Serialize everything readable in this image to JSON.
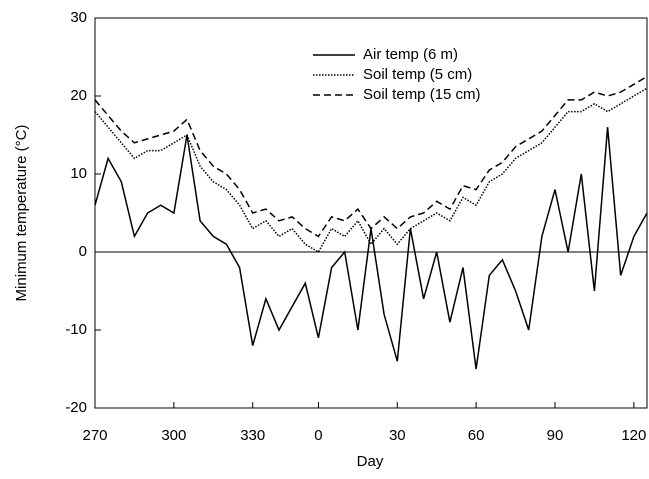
{
  "chart_data": {
    "type": "line",
    "xlabel": "Day",
    "ylabel": "Minimum temperature (°C)",
    "x": [
      270,
      275,
      280,
      285,
      290,
      295,
      300,
      305,
      310,
      315,
      320,
      325,
      330,
      335,
      340,
      345,
      350,
      355,
      360,
      365,
      370,
      375,
      380,
      385,
      390,
      395,
      400,
      405,
      410,
      415,
      420,
      425,
      430,
      435,
      440,
      445,
      450,
      455,
      460,
      465,
      470,
      475,
      480
    ],
    "series": [
      {
        "name": "Air temp (6 m)",
        "color": "#000000",
        "dash": "solid",
        "values": [
          6,
          12,
          9,
          2,
          5,
          6,
          5,
          15,
          4,
          2,
          1,
          -2,
          -12,
          -6,
          -10,
          -7,
          -4,
          -11,
          -2,
          0,
          -10,
          3,
          -8,
          -14,
          3,
          -6,
          0,
          -9,
          -2,
          -15,
          -3,
          -1,
          -5,
          -10,
          2,
          8,
          0,
          10,
          -5,
          16,
          -3,
          2,
          5
        ]
      },
      {
        "name": "Soil temp (5 cm)",
        "color": "#000000",
        "dash": "dotted",
        "values": [
          18,
          16,
          14,
          12,
          13,
          13,
          14,
          15,
          11,
          9,
          8,
          6,
          3,
          4,
          2,
          3,
          1,
          0,
          3,
          2,
          4,
          1,
          3,
          1,
          3,
          4,
          5,
          4,
          7,
          6,
          9,
          10,
          12,
          13,
          14,
          16,
          18,
          18,
          19,
          18,
          19,
          20,
          21
        ]
      },
      {
        "name": "Soil temp (15 cm)",
        "color": "#000000",
        "dash": "dashed",
        "values": [
          19.5,
          17.5,
          15.5,
          14,
          14.5,
          15,
          15.5,
          17,
          13,
          11,
          10,
          8,
          5,
          5.5,
          4,
          4.5,
          3,
          2,
          4.5,
          4,
          5.5,
          3,
          4.5,
          3,
          4.5,
          5,
          6.5,
          5.5,
          8.5,
          8,
          10.5,
          11.5,
          13.5,
          14.5,
          15.5,
          17.5,
          19.5,
          19.5,
          20.5,
          20,
          20.5,
          21.5,
          22.5
        ]
      }
    ],
    "xlim": [
      270,
      480
    ],
    "xticks": [
      270,
      300,
      330,
      {
        "value": 355,
        "label": "0"
      },
      {
        "value": 385,
        "label": "30"
      },
      {
        "value": 415,
        "label": "60"
      },
      {
        "value": 445,
        "label": "90"
      },
      {
        "value": 475,
        "label": "120"
      }
    ],
    "ylim": [
      -20,
      30
    ],
    "yticks": [
      -20,
      -10,
      0,
      10,
      20,
      30
    ],
    "reference_line": 0,
    "legend": "top-right"
  }
}
